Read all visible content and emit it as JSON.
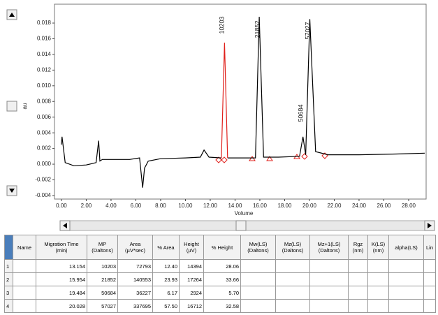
{
  "chart_data": {
    "type": "line",
    "y_label": "au",
    "x_label": "Volume",
    "xlim": [
      -0.56,
      29.41
    ],
    "ylim": [
      -0.00445,
      0.01916
    ],
    "yticks": [
      {
        "value": -0.004,
        "label": "-0.004"
      },
      {
        "value": -0.002,
        "label": "-0.002"
      },
      {
        "value": 0,
        "label": "0.000"
      },
      {
        "value": 0.002,
        "label": "0.002"
      },
      {
        "value": 0.004,
        "label": "0.004"
      },
      {
        "value": 0.006,
        "label": "0.006"
      },
      {
        "value": 0.008,
        "label": "0.008"
      },
      {
        "value": 0.01,
        "label": "0.010"
      },
      {
        "value": 0.012,
        "label": "0.012"
      },
      {
        "value": 0.014,
        "label": "0.014"
      },
      {
        "value": 0.016,
        "label": "0.016"
      },
      {
        "value": 0.018,
        "label": "0.018"
      }
    ],
    "xticks": [
      {
        "value": 0,
        "label": "0.00"
      },
      {
        "value": 2,
        "label": "2.00"
      },
      {
        "value": 4,
        "label": "4.00"
      },
      {
        "value": 6,
        "label": "6.00"
      },
      {
        "value": 8,
        "label": "8.00"
      },
      {
        "value": 10,
        "label": "10.00"
      },
      {
        "value": 12,
        "label": "12.00"
      },
      {
        "value": 14,
        "label": "14.00"
      },
      {
        "value": 16,
        "label": "16.00"
      },
      {
        "value": 18,
        "label": "18.00"
      },
      {
        "value": 20,
        "label": "20.00"
      },
      {
        "value": 22,
        "label": "22.00"
      },
      {
        "value": 24,
        "label": "24.00"
      },
      {
        "value": 26,
        "label": "26.00"
      },
      {
        "value": 28,
        "label": "28.00"
      }
    ],
    "peak_labels": [
      "10203",
      "21852",
      "50684",
      "57027"
    ],
    "x": [
      0,
      0.05,
      0.3,
      1,
      2,
      2.8,
      3.0,
      3.1,
      3.3,
      4.5,
      5.5,
      6.3,
      6.55,
      6.7,
      7,
      8,
      10,
      11.2,
      11.5,
      11.9,
      12.9,
      13.15,
      13.4,
      14.5,
      15.65,
      15.95,
      16.3,
      17.5,
      19.2,
      19.48,
      19.7,
      20.03,
      20.5,
      21.5,
      24,
      27,
      29.3
    ],
    "series": [
      {
        "color": "#000000",
        "values": [
          0.0025,
          0.0035,
          0.0002,
          -0.0002,
          -0.0001,
          0.0002,
          0.003,
          0.0004,
          0.0006,
          0.0006,
          0.0006,
          0.0008,
          -0.003,
          -0.0005,
          0.0004,
          0.0007,
          0.0008,
          0.0009,
          0.0018,
          0.0009,
          0.0008,
          null,
          0.0008,
          0.0008,
          0.0008,
          0.0188,
          0.0009,
          0.0009,
          0.001,
          0.0035,
          0.0012,
          0.0185,
          0.0016,
          0.0012,
          0.0012,
          0.0013,
          0.0014
        ]
      },
      {
        "color": "#e0201b",
        "values": [
          null,
          null,
          null,
          null,
          null,
          null,
          null,
          null,
          null,
          null,
          null,
          null,
          null,
          null,
          null,
          null,
          null,
          null,
          null,
          null,
          0.0008,
          0.0155,
          0.0008,
          null,
          null,
          null,
          null,
          null,
          null,
          null,
          null,
          null,
          null,
          null,
          null,
          null,
          null
        ]
      }
    ]
  },
  "table": {
    "header": [
      "Name",
      "Migration Time (min)",
      "MP (Daltons)",
      "Area (µV*sec)",
      "% Area",
      "Height (µV)",
      "% Height",
      "Mw(LS) (Daltons)",
      "Mz(LS) (Daltons)",
      "Mz+1(LS) (Daltons)",
      "Rgz (nm)",
      "K(LS) (nm)",
      "alpha(LS)",
      "Lin"
    ],
    "row_numbers": [
      "1",
      "2",
      "3",
      "4"
    ],
    "rows": [
      [
        "13.154",
        "10203",
        "72793",
        "12.40",
        "14394",
        "28.06"
      ],
      [
        "15.954",
        "21852",
        "140553",
        "23.93",
        "17264",
        "33.66"
      ],
      [
        "19.484",
        "50684",
        "36227",
        "6.17",
        "2924",
        "5.70"
      ],
      [
        "20.028",
        "57027",
        "337695",
        "57.50",
        "16712",
        "32.58"
      ]
    ]
  }
}
